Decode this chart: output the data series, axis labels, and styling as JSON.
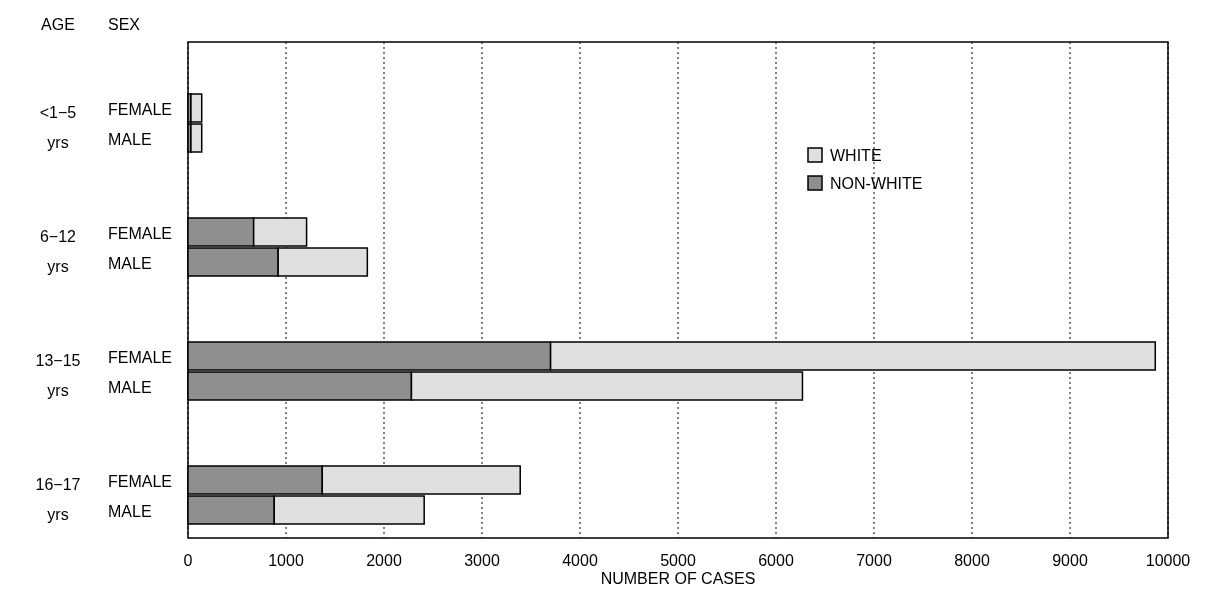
{
  "chart_data": {
    "type": "bar",
    "orientation": "horizontal",
    "stacked": true,
    "xlabel": "NUMBER OF CASES",
    "ylabel": "SEX",
    "categories": [
      "FEMALE",
      "MALE",
      "FEMALE",
      "MALE",
      "FEMALE",
      "MALE",
      "FEMALE",
      "MALE"
    ],
    "series": [
      {
        "name": "NON-WHITE",
        "color": "#8f8f8f",
        "values": [
          30,
          30,
          670,
          920,
          3700,
          2280,
          1370,
          880
        ]
      },
      {
        "name": "WHITE",
        "color": "#e0e0e0",
        "values": [
          110,
          110,
          540,
          910,
          6170,
          3990,
          2020,
          1530
        ]
      }
    ],
    "xlim": [
      0,
      10000
    ],
    "xticks": [
      0,
      1000,
      2000,
      3000,
      4000,
      5000,
      6000,
      7000,
      8000,
      9000,
      10000
    ],
    "grid": "x",
    "legend": "top right",
    "annotations": [
      "AGE",
      "<1−5 yrs",
      "6−12 yrs",
      "13−15 yrs",
      "16−17 yrs"
    ]
  }
}
